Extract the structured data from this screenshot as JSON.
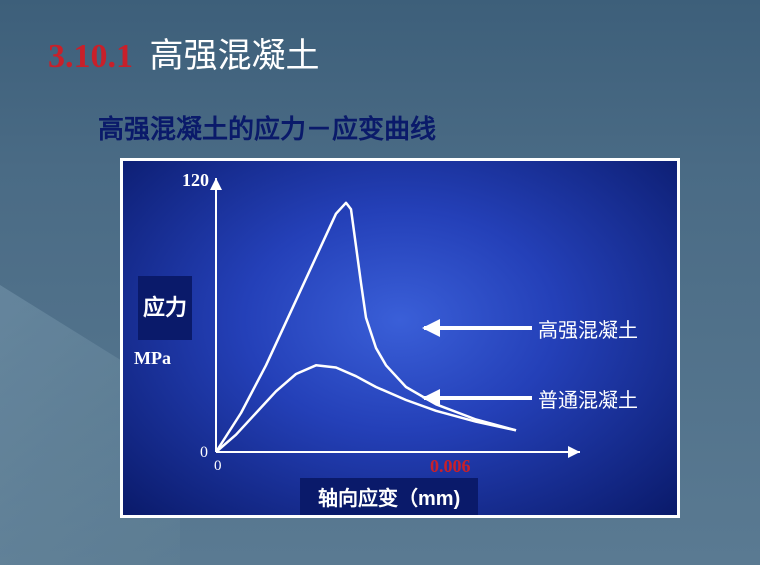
{
  "header": {
    "section_number": "3.10.1",
    "section_title": "高强混凝土"
  },
  "subtitle": "高强混凝土的应力－应变曲线",
  "chart": {
    "type": "line",
    "y_axis": {
      "label": "应力",
      "unit": "MPa",
      "max_label": "120",
      "zero_label": "0",
      "ylim": [
        0,
        120
      ]
    },
    "x_axis": {
      "label": "轴向应变（mm)",
      "max_label": "0.006",
      "zero_label": "0",
      "xlim": [
        0,
        0.006
      ]
    },
    "series": [
      {
        "name": "high_strength",
        "label": "高强混凝土",
        "color": "#ffffff",
        "line_width": 2.5,
        "points_xy": [
          [
            0.0,
            0
          ],
          [
            0.0005,
            18
          ],
          [
            0.001,
            40
          ],
          [
            0.0015,
            65
          ],
          [
            0.002,
            90
          ],
          [
            0.0024,
            110
          ],
          [
            0.0026,
            115
          ],
          [
            0.0027,
            112
          ],
          [
            0.0028,
            95
          ],
          [
            0.0029,
            78
          ],
          [
            0.003,
            62
          ],
          [
            0.0032,
            48
          ],
          [
            0.0034,
            40
          ],
          [
            0.0038,
            30
          ],
          [
            0.0044,
            22
          ],
          [
            0.0052,
            15
          ],
          [
            0.006,
            10
          ]
        ]
      },
      {
        "name": "normal",
        "label": "普通混凝土",
        "color": "#ffffff",
        "line_width": 2.5,
        "points_xy": [
          [
            0.0,
            0
          ],
          [
            0.0004,
            8
          ],
          [
            0.0008,
            18
          ],
          [
            0.0012,
            28
          ],
          [
            0.0016,
            36
          ],
          [
            0.002,
            40
          ],
          [
            0.0024,
            39
          ],
          [
            0.0028,
            35
          ],
          [
            0.0032,
            30
          ],
          [
            0.0038,
            24
          ],
          [
            0.0044,
            19
          ],
          [
            0.0052,
            14
          ],
          [
            0.006,
            10
          ]
        ]
      }
    ],
    "background_gradient": [
      "#3a5fd8",
      "#2440b8",
      "#0a1a6a"
    ],
    "border_color": "#ffffff",
    "axis_color": "#ffffff",
    "label_box_bg": "#0a1a6a",
    "label_text_color": "#ffffff",
    "accent_color": "#c8202a",
    "arrow_color": "#ffffff",
    "title_fontsize": 26,
    "label_fontsize": 20
  },
  "slide": {
    "bg_colors": [
      "#3d5f7a",
      "#4a6b85",
      "#5a7a92"
    ],
    "section_num_color": "#c8202a",
    "title_color": "#ffffff",
    "subtitle_color": "#0a1a6a"
  }
}
